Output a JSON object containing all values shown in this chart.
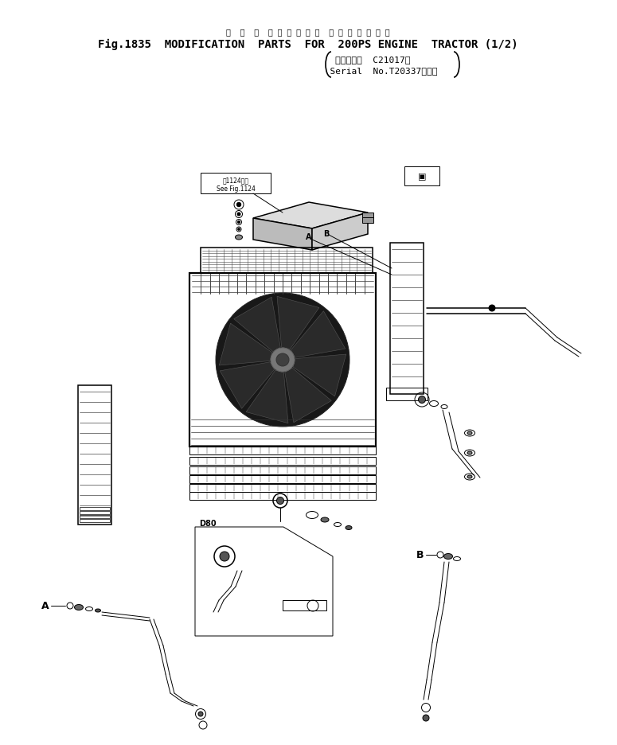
{
  "title_japanese": "２  ０  ０  馬 カ エ ン ジ ン  塔 載 車 専 用 部 品",
  "title_english": "Fig.1835  MODIFICATION  PARTS  FOR  200PS ENGINE  TRACTOR (1/2)",
  "subtitle_line1": "（適用号機  C21017～",
  "subtitle_line2": "  Serial  No.T20337～．）",
  "note_line1": "図1124参照",
  "note_line2": "See Fig.1124",
  "label_D80": "D80",
  "label_A": "A",
  "label_B": "B",
  "bg_color": "#ffffff",
  "ink_color": "#000000",
  "fig_width": 7.75,
  "fig_height": 9.37,
  "dpi": 100
}
